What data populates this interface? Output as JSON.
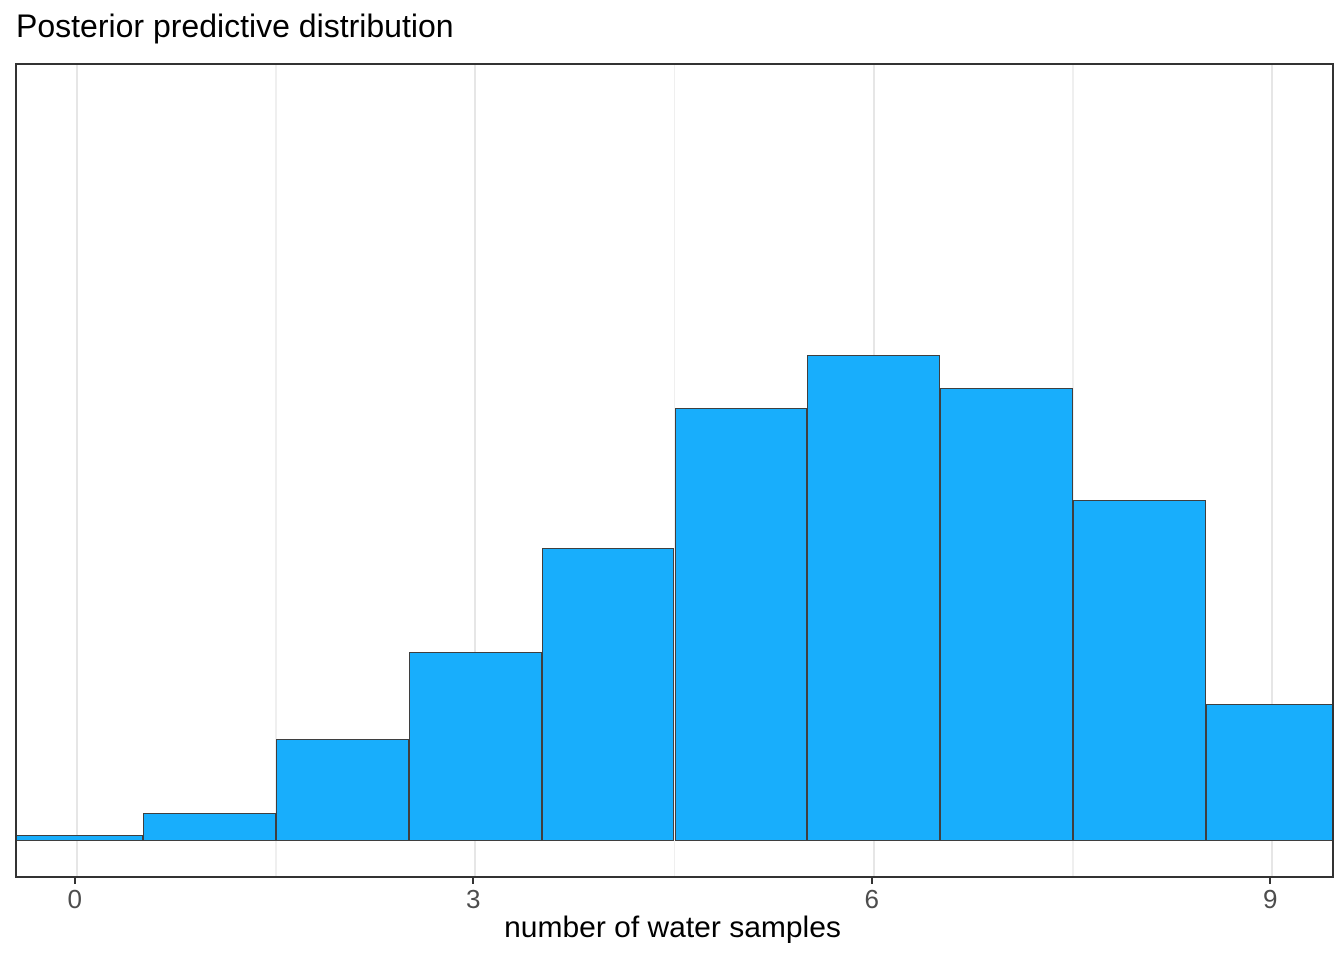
{
  "chart_data": {
    "type": "bar",
    "subtype": "histogram",
    "title": "Posterior predictive distribution",
    "xlabel": "number of water samples",
    "ylabel": "",
    "x": [
      0,
      1,
      2,
      3,
      4,
      5,
      6,
      7,
      8,
      9
    ],
    "counts": [
      24,
      113,
      413,
      766,
      1187,
      1754,
      1969,
      1836,
      1382,
      555
    ],
    "bar_width": 1,
    "x_ticks": [
      "0",
      "3",
      "6",
      "9"
    ],
    "x_tick_values": [
      0,
      3,
      6,
      9
    ],
    "x_minor_gridlines": [
      1.5,
      4.5,
      7.5
    ],
    "xlim": [
      -0.45,
      9.45
    ],
    "ylim": [
      -142,
      3142
    ],
    "grid": "vertical-only",
    "y_axis_visible": false,
    "legend": "none"
  },
  "colors": {
    "background": "#ffffff",
    "bar_fill": "#18aefc",
    "bar_outline": "#3f3f3f",
    "panel_border": "#333333",
    "grid_major": "#e6e6e6",
    "grid_minor": "#efefef",
    "tick_mark": "#333333",
    "tick_label": "#4d4d4d",
    "title_color": "#000000",
    "axis_title_color": "#000000"
  }
}
